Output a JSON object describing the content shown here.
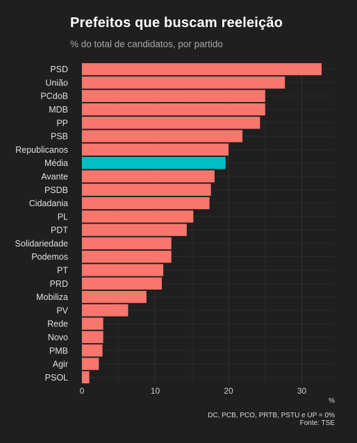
{
  "colors": {
    "background": "#1f1f1f",
    "bar": "#f8766d",
    "highlight": "#00bfc4",
    "grid": "#333333"
  },
  "chart_data": {
    "type": "bar",
    "orientation": "horizontal",
    "title": "Prefeitos que buscam reeleição",
    "subtitle": "% do total de candidatos, por partido",
    "xlabel": "%",
    "ylabel": "",
    "xlim": [
      0,
      34.5
    ],
    "xticks": [
      0,
      10,
      20,
      30
    ],
    "grid": true,
    "legend": "none",
    "highlight_category": "Média",
    "categories": [
      "PSD",
      "União",
      "PCdoB",
      "MDB",
      "PP",
      "PSB",
      "Republicanos",
      "Média",
      "Avante",
      "PSDB",
      "Cidadania",
      "PL",
      "PDT",
      "Solidariedade",
      "Podemos",
      "PT",
      "PRD",
      "Mobiliza",
      "PV",
      "Rede",
      "Novo",
      "PMB",
      "Agir",
      "PSOL"
    ],
    "values": [
      32.7,
      27.7,
      25.0,
      25.0,
      24.3,
      21.9,
      20.0,
      19.6,
      18.1,
      17.6,
      17.4,
      15.2,
      14.3,
      12.2,
      12.2,
      11.1,
      10.9,
      8.8,
      6.3,
      2.9,
      2.9,
      2.8,
      2.3,
      1.0
    ],
    "note": "DC, PCB, PCO, PRTB, PSTU e UP = 0%",
    "source": "Fonte: TSE"
  }
}
